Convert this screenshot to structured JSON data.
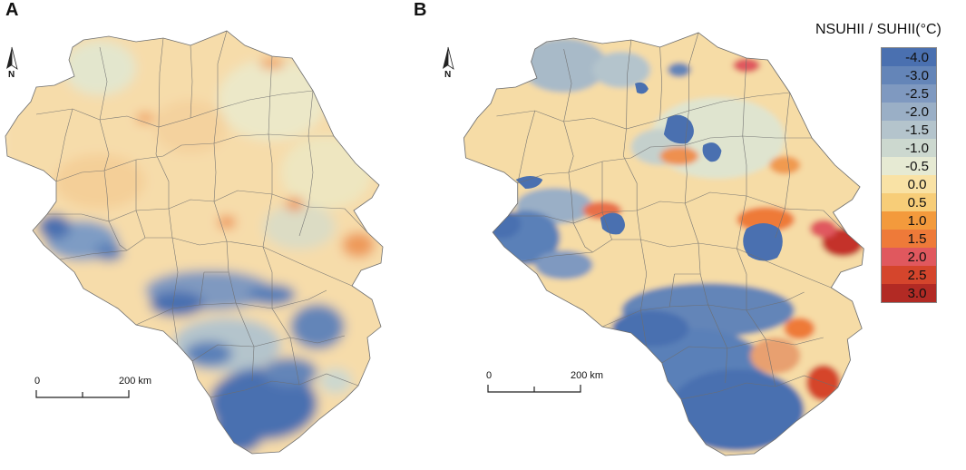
{
  "panels": [
    {
      "label": "A",
      "scale": {
        "start": "0",
        "end": "200 km"
      },
      "north": "N"
    },
    {
      "label": "B",
      "scale": {
        "start": "0",
        "end": "200 km"
      },
      "north": "N"
    }
  ],
  "legend": {
    "title": "NSUHII / SUHII(°C)",
    "entries": [
      {
        "label": "-4.0",
        "color": "#4a70b0"
      },
      {
        "label": "-3.0",
        "color": "#6485b8"
      },
      {
        "label": "-2.5",
        "color": "#7f99c0"
      },
      {
        "label": "-2.0",
        "color": "#9aafc6"
      },
      {
        "label": "-1.5",
        "color": "#b4c4cc"
      },
      {
        "label": "-1.0",
        "color": "#ccd8cf"
      },
      {
        "label": "-0.5",
        "color": "#e6ead3"
      },
      {
        "label": "0.0",
        "color": "#f9e2a5"
      },
      {
        "label": "0.5",
        "color": "#f7cd78"
      },
      {
        "label": "1.0",
        "color": "#f39a3c"
      },
      {
        "label": "1.5",
        "color": "#ee7a39"
      },
      {
        "label": "2.0",
        "color": "#e0585e"
      },
      {
        "label": "2.5",
        "color": "#d5452c"
      },
      {
        "label": "3.0",
        "color": "#b22a24"
      }
    ]
  }
}
